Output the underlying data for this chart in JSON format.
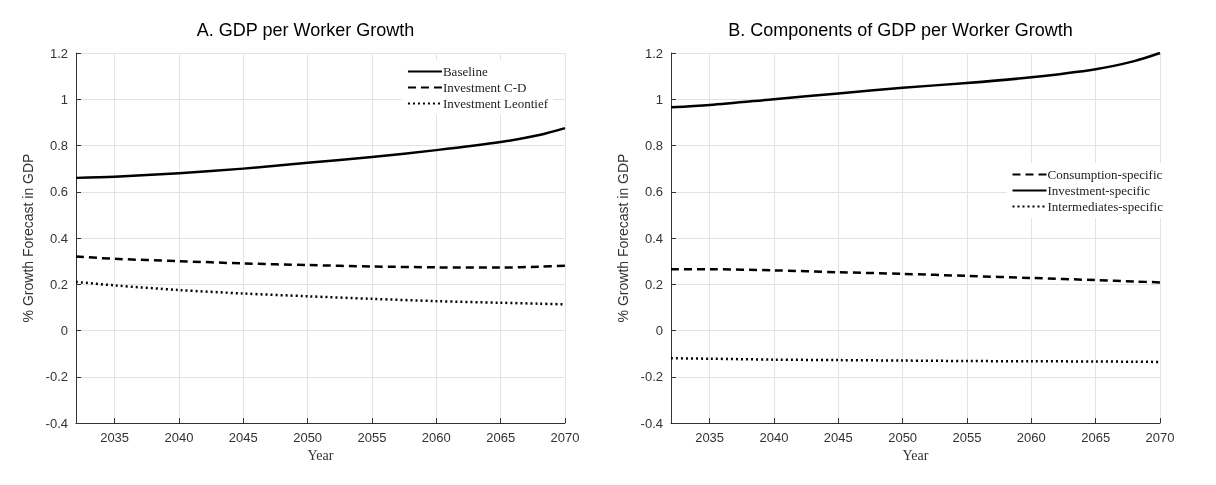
{
  "chart_data": [
    {
      "type": "line",
      "title": "A. GDP per Worker Growth",
      "xlabel": "Year",
      "ylabel": "% Growth Forecast in GDP",
      "xlim": [
        2032,
        2070
      ],
      "xticks": [
        2035,
        2040,
        2045,
        2050,
        2055,
        2060,
        2065,
        2070
      ],
      "ylim": [
        -0.4,
        1.2
      ],
      "yticks": [
        -0.4,
        -0.2,
        0,
        0.2,
        0.4,
        0.6,
        0.8,
        1,
        1.2
      ],
      "grid": true,
      "legend": "top right",
      "x": [
        2032,
        2035,
        2040,
        2045,
        2050,
        2055,
        2060,
        2065,
        2068,
        2070
      ],
      "series": [
        {
          "name": "Baseline",
          "color": "#000000",
          "line_style": "solid",
          "values": [
            0.66,
            0.665,
            0.68,
            0.7,
            0.725,
            0.75,
            0.78,
            0.815,
            0.845,
            0.875
          ]
        },
        {
          "name": "Investment C-D",
          "color": "#000000",
          "line_style": "dashed",
          "values": [
            0.32,
            0.31,
            0.3,
            0.29,
            0.283,
            0.277,
            0.273,
            0.272,
            0.276,
            0.28
          ]
        },
        {
          "name": "Investment Leontief",
          "color": "#000000",
          "line_style": "dotted",
          "values": [
            0.21,
            0.195,
            0.175,
            0.16,
            0.148,
            0.137,
            0.127,
            0.12,
            0.116,
            0.113
          ]
        }
      ]
    },
    {
      "type": "line",
      "title": "B. Components of GDP per Worker Growth",
      "xlabel": "Year",
      "ylabel": "% Growth Forecast in GDP",
      "xlim": [
        2032,
        2070
      ],
      "xticks": [
        2035,
        2040,
        2045,
        2050,
        2055,
        2060,
        2065,
        2070
      ],
      "ylim": [
        -0.4,
        1.2
      ],
      "yticks": [
        -0.4,
        -0.2,
        0,
        0.2,
        0.4,
        0.6,
        0.8,
        1,
        1.2
      ],
      "grid": true,
      "legend": "right",
      "x": [
        2032,
        2035,
        2040,
        2045,
        2050,
        2055,
        2060,
        2065,
        2068,
        2070
      ],
      "series": [
        {
          "name": "Consumption-specific",
          "color": "#000000",
          "line_style": "dashed",
          "values": [
            0.265,
            0.265,
            0.26,
            0.252,
            0.245,
            0.236,
            0.227,
            0.218,
            0.212,
            0.208
          ]
        },
        {
          "name": "Investment-specific",
          "color": "#000000",
          "line_style": "solid",
          "values": [
            0.965,
            0.975,
            1.0,
            1.025,
            1.05,
            1.07,
            1.095,
            1.13,
            1.165,
            1.2
          ]
        },
        {
          "name": "Intermediates-specific",
          "color": "#000000",
          "line_style": "dotted",
          "values": [
            -0.12,
            -0.122,
            -0.126,
            -0.128,
            -0.13,
            -0.132,
            -0.133,
            -0.134,
            -0.135,
            -0.136
          ]
        }
      ]
    }
  ]
}
